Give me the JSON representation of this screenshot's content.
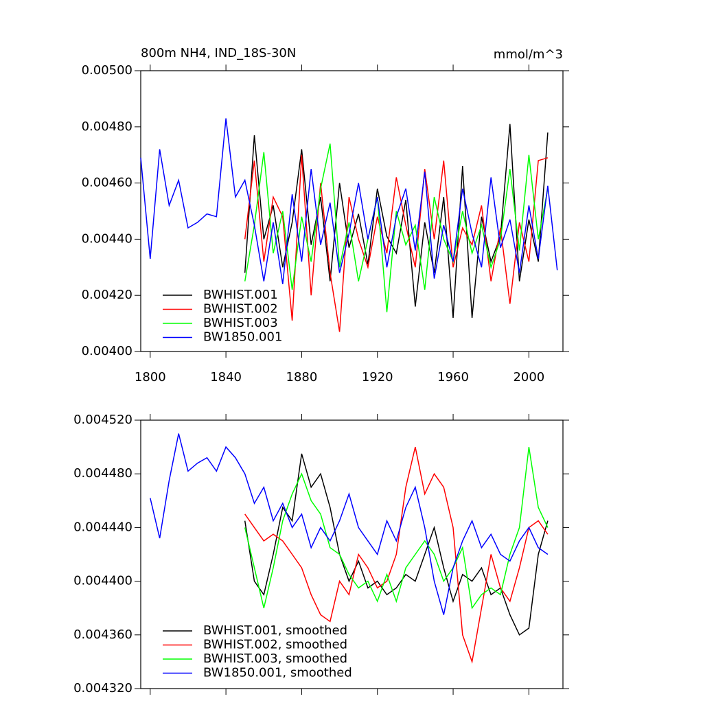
{
  "chart_data": [
    {
      "type": "line",
      "title": "800m NH4, IND_18S-30N",
      "units": "mmol/m^3",
      "xlim": [
        1795,
        2018
      ],
      "xticks": [
        1800,
        1840,
        1880,
        1920,
        1960,
        2000
      ],
      "ylim": [
        0.004,
        0.005
      ],
      "yticks": [
        {
          "value": 0.004,
          "label": "0.00400"
        },
        {
          "value": 0.0042,
          "label": "0.00420"
        },
        {
          "value": 0.0044,
          "label": "0.00440"
        },
        {
          "value": 0.0046,
          "label": "0.00460"
        },
        {
          "value": 0.0048,
          "label": "0.00480"
        },
        {
          "value": 0.005,
          "label": "0.00500"
        }
      ],
      "legend": "lower left",
      "series": [
        {
          "name": "BWHIST.001",
          "color": "#000000",
          "x": [
            1850,
            1855,
            1860,
            1865,
            1870,
            1875,
            1880,
            1885,
            1890,
            1895,
            1900,
            1905,
            1910,
            1915,
            1920,
            1925,
            1930,
            1935,
            1940,
            1945,
            1950,
            1955,
            1960,
            1965,
            1970,
            1975,
            1980,
            1985,
            1990,
            1995,
            2000,
            2005,
            2010
          ],
          "values": [
            0.00428,
            0.00477,
            0.0044,
            0.00452,
            0.0043,
            0.00446,
            0.00472,
            0.00438,
            0.00455,
            0.00425,
            0.0046,
            0.00437,
            0.00449,
            0.00431,
            0.00458,
            0.00441,
            0.00435,
            0.00454,
            0.00416,
            0.00446,
            0.00428,
            0.00455,
            0.00412,
            0.00466,
            0.00412,
            0.00448,
            0.00432,
            0.00441,
            0.00481,
            0.00425,
            0.00447,
            0.00432,
            0.00478
          ]
        },
        {
          "name": "BWHIST.002",
          "color": "#ff0000",
          "x": [
            1850,
            1855,
            1860,
            1865,
            1870,
            1875,
            1880,
            1885,
            1890,
            1895,
            1900,
            1905,
            1910,
            1915,
            1920,
            1925,
            1930,
            1935,
            1940,
            1945,
            1950,
            1955,
            1960,
            1965,
            1970,
            1975,
            1980,
            1985,
            1990,
            1995,
            2000,
            2005,
            2010
          ],
          "values": [
            0.0044,
            0.00468,
            0.00432,
            0.00455,
            0.00448,
            0.00411,
            0.0047,
            0.0042,
            0.0046,
            0.00428,
            0.00407,
            0.00455,
            0.0044,
            0.0043,
            0.00448,
            0.00435,
            0.00462,
            0.00445,
            0.0043,
            0.00465,
            0.0044,
            0.00468,
            0.0043,
            0.00444,
            0.00438,
            0.00452,
            0.00425,
            0.00444,
            0.00417,
            0.00446,
            0.00432,
            0.00468,
            0.00469
          ]
        },
        {
          "name": "BWHIST.003",
          "color": "#00ff00",
          "x": [
            1850,
            1855,
            1860,
            1865,
            1870,
            1875,
            1880,
            1885,
            1890,
            1895,
            1900,
            1905,
            1910,
            1915,
            1920,
            1925,
            1930,
            1935,
            1940,
            1945,
            1950,
            1955,
            1960,
            1965,
            1970,
            1975,
            1980,
            1985,
            1990,
            1995,
            2000,
            2005,
            2010
          ],
          "values": [
            0.00425,
            0.00445,
            0.00471,
            0.00435,
            0.0045,
            0.00422,
            0.00448,
            0.00432,
            0.00458,
            0.00474,
            0.0043,
            0.00446,
            0.00425,
            0.0044,
            0.00455,
            0.00414,
            0.0045,
            0.00438,
            0.00445,
            0.00422,
            0.00455,
            0.0044,
            0.00432,
            0.0045,
            0.00435,
            0.00445,
            0.0043,
            0.0044,
            0.00465,
            0.00436,
            0.0047,
            0.0044,
            0.00458
          ]
        },
        {
          "name": "BW1850.001",
          "color": "#0000ff",
          "x": [
            1795,
            1800,
            1805,
            1810,
            1815,
            1820,
            1825,
            1830,
            1835,
            1840,
            1845,
            1850,
            1855,
            1860,
            1865,
            1870,
            1875,
            1880,
            1885,
            1890,
            1895,
            1900,
            1905,
            1910,
            1915,
            1920,
            1925,
            1930,
            1935,
            1940,
            1945,
            1950,
            1955,
            1960,
            1965,
            1970,
            1975,
            1980,
            1985,
            1990,
            1995,
            2000,
            2005,
            2010,
            2015
          ],
          "values": [
            0.00469,
            0.00433,
            0.00472,
            0.00452,
            0.00461,
            0.00444,
            0.00446,
            0.00449,
            0.00448,
            0.00483,
            0.00455,
            0.00461,
            0.00445,
            0.00425,
            0.00446,
            0.00424,
            0.00456,
            0.00432,
            0.00465,
            0.00438,
            0.00453,
            0.00428,
            0.00442,
            0.0046,
            0.0044,
            0.00455,
            0.0043,
            0.00448,
            0.00458,
            0.00436,
            0.00464,
            0.00426,
            0.00445,
            0.00432,
            0.00458,
            0.00442,
            0.0043,
            0.00462,
            0.00437,
            0.00447,
            0.00428,
            0.00452,
            0.00433,
            0.00459,
            0.00429
          ]
        }
      ]
    },
    {
      "type": "line",
      "xlim": [
        1795,
        2018
      ],
      "ylim": [
        0.00432,
        0.00452
      ],
      "yticks": [
        {
          "value": 0.00432,
          "label": "0.004320"
        },
        {
          "value": 0.00436,
          "label": "0.004360"
        },
        {
          "value": 0.0044,
          "label": "0.004400"
        },
        {
          "value": 0.00444,
          "label": "0.004440"
        },
        {
          "value": 0.00448,
          "label": "0.004480"
        },
        {
          "value": 0.00452,
          "label": "0.004520"
        }
      ],
      "legend": "lower left",
      "series": [
        {
          "name": "BWHIST.001, smoothed",
          "color": "#000000",
          "x": [
            1850,
            1855,
            1860,
            1865,
            1870,
            1875,
            1880,
            1885,
            1890,
            1895,
            1900,
            1905,
            1910,
            1915,
            1920,
            1925,
            1930,
            1935,
            1940,
            1945,
            1950,
            1955,
            1960,
            1965,
            1970,
            1975,
            1980,
            1985,
            1990,
            1995,
            2000,
            2005,
            2010
          ],
          "values": [
            0.004445,
            0.0044,
            0.00439,
            0.00442,
            0.004455,
            0.004445,
            0.004495,
            0.00447,
            0.00448,
            0.004455,
            0.00442,
            0.0044,
            0.004415,
            0.004395,
            0.0044,
            0.00439,
            0.004395,
            0.004405,
            0.0044,
            0.00442,
            0.00444,
            0.00441,
            0.004385,
            0.004405,
            0.0044,
            0.00441,
            0.00439,
            0.004395,
            0.004375,
            0.00436,
            0.004365,
            0.00442,
            0.004445
          ]
        },
        {
          "name": "BWHIST.002, smoothed",
          "color": "#ff0000",
          "x": [
            1850,
            1855,
            1860,
            1865,
            1870,
            1875,
            1880,
            1885,
            1890,
            1895,
            1900,
            1905,
            1910,
            1915,
            1920,
            1925,
            1930,
            1935,
            1940,
            1945,
            1950,
            1955,
            1960,
            1965,
            1970,
            1975,
            1980,
            1985,
            1990,
            1995,
            2000,
            2005,
            2010
          ],
          "values": [
            0.00445,
            0.00444,
            0.00443,
            0.004435,
            0.00443,
            0.00442,
            0.00441,
            0.00439,
            0.004375,
            0.00437,
            0.0044,
            0.00439,
            0.00442,
            0.00441,
            0.004395,
            0.0044,
            0.00442,
            0.00447,
            0.0045,
            0.004465,
            0.00448,
            0.00447,
            0.00444,
            0.00436,
            0.00434,
            0.00438,
            0.00442,
            0.004395,
            0.004385,
            0.00441,
            0.00444,
            0.004445,
            0.004435
          ]
        },
        {
          "name": "BWHIST.003, smoothed",
          "color": "#00ff00",
          "x": [
            1850,
            1855,
            1860,
            1865,
            1870,
            1875,
            1880,
            1885,
            1890,
            1895,
            1900,
            1905,
            1910,
            1915,
            1920,
            1925,
            1930,
            1935,
            1940,
            1945,
            1950,
            1955,
            1960,
            1965,
            1970,
            1975,
            1980,
            1985,
            1990,
            1995,
            2000,
            2005,
            2010
          ],
          "values": [
            0.00444,
            0.00441,
            0.00438,
            0.00441,
            0.004445,
            0.004465,
            0.00448,
            0.00446,
            0.00445,
            0.004425,
            0.00442,
            0.004405,
            0.004395,
            0.0044,
            0.004385,
            0.004405,
            0.004385,
            0.00441,
            0.00442,
            0.00443,
            0.00442,
            0.0044,
            0.00441,
            0.004425,
            0.00438,
            0.00439,
            0.004395,
            0.00439,
            0.00442,
            0.00444,
            0.0045,
            0.004455,
            0.00444
          ]
        },
        {
          "name": "BW1850.001, smoothed",
          "color": "#0000ff",
          "x": [
            1800,
            1805,
            1810,
            1815,
            1820,
            1825,
            1830,
            1835,
            1840,
            1845,
            1850,
            1855,
            1860,
            1865,
            1870,
            1875,
            1880,
            1885,
            1890,
            1895,
            1900,
            1905,
            1910,
            1915,
            1920,
            1925,
            1930,
            1935,
            1940,
            1945,
            1950,
            1955,
            1960,
            1965,
            1970,
            1975,
            1980,
            1985,
            1990,
            1995,
            2000,
            2005,
            2010
          ],
          "values": [
            0.004462,
            0.004432,
            0.004475,
            0.00451,
            0.004482,
            0.004488,
            0.004492,
            0.004482,
            0.0045,
            0.004492,
            0.00448,
            0.004458,
            0.00447,
            0.004445,
            0.004458,
            0.00444,
            0.00445,
            0.004425,
            0.00444,
            0.00443,
            0.004445,
            0.004465,
            0.00444,
            0.00443,
            0.00442,
            0.004445,
            0.00443,
            0.004455,
            0.00447,
            0.00444,
            0.0044,
            0.004375,
            0.00441,
            0.00443,
            0.004445,
            0.004425,
            0.004435,
            0.00442,
            0.004415,
            0.00443,
            0.00444,
            0.004425,
            0.00442
          ]
        }
      ]
    }
  ]
}
